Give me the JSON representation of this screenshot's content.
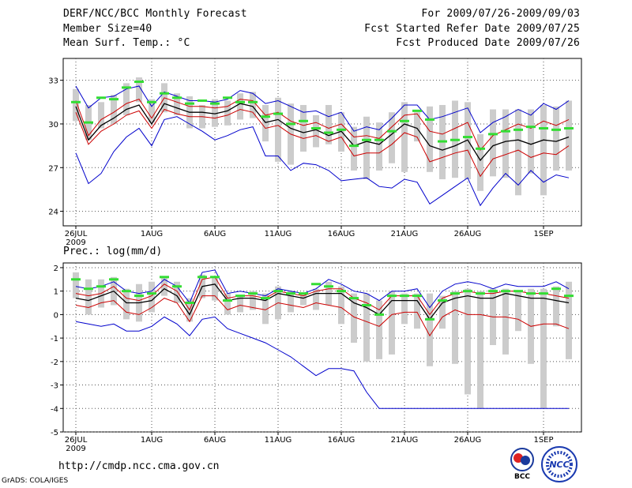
{
  "header": {
    "title": "DERF/NCC/BCC Monthly Forecast",
    "member_size": "Member Size=40",
    "variable": "Mean Surf. Temp.: °C",
    "period": "For 2009/07/26-2009/09/03",
    "fcst_started": "Fcst Started Refer Date 2009/07/25",
    "fcst_produced": "Fcst Produced Date 2009/07/26"
  },
  "footer": {
    "url": "http://cmdp.ncc.cma.gov.cn",
    "grads": "GrADS: COLA/IGES",
    "logo_left_text": "BCC",
    "logo_right_text": "NCC"
  },
  "colors": {
    "max_min_line": "#0000cc",
    "upper_lower_line": "#cc0000",
    "mean_line": "#000000",
    "obs_bar": "#cccccc",
    "marker": "#33dd33",
    "grid": "#555555"
  },
  "chart_data": [
    {
      "type": "line",
      "title": "Mean Surf. Temp.: °C",
      "x_start_day": 0,
      "n_days": 40,
      "xticks": [
        "26JUL",
        "1AUG",
        "6AUG",
        "11AUG",
        "16AUG",
        "21AUG",
        "26AUG",
        "1SEP"
      ],
      "xtick_days": [
        0,
        6,
        11,
        16,
        21,
        26,
        31,
        37
      ],
      "xtick_sub": [
        "2009",
        "",
        "",
        "",
        "",
        "",
        "",
        ""
      ],
      "yticks": [
        "24",
        "27",
        "30",
        "33"
      ],
      "ylim": [
        23,
        34.5
      ],
      "series": [
        {
          "name": "ensemble max",
          "color": "#0000cc",
          "values": [
            32.6,
            31.1,
            31.8,
            31.9,
            32.4,
            32.6,
            31.2,
            32.2,
            31.9,
            31.6,
            31.6,
            31.5,
            31.7,
            32.3,
            32.1,
            31.4,
            31.6,
            31.2,
            30.8,
            30.9,
            30.5,
            30.8,
            29.5,
            29.8,
            29.6,
            30.4,
            31.3,
            31.3,
            30.3,
            30.5,
            30.8,
            31.1,
            29.4,
            30.1,
            30.5,
            31.0,
            30.6,
            31.4,
            31.0,
            31.6
          ]
        },
        {
          "name": "ensemble upper",
          "color": "#cc0000",
          "values": [
            31.6,
            29.2,
            30.3,
            30.8,
            31.4,
            31.7,
            30.4,
            31.8,
            31.5,
            31.2,
            31.2,
            31.1,
            31.2,
            31.7,
            31.6,
            30.6,
            30.8,
            30.2,
            29.9,
            30.1,
            29.7,
            30.0,
            29.1,
            29.2,
            29.0,
            29.8,
            30.6,
            30.7,
            29.5,
            29.3,
            29.7,
            30.1,
            28.2,
            29.2,
            29.6,
            30.0,
            29.7,
            30.2,
            29.9,
            30.3
          ]
        },
        {
          "name": "ensemble mean",
          "color": "#000000",
          "values": [
            31.2,
            28.9,
            29.9,
            30.4,
            31.0,
            31.3,
            30.0,
            31.4,
            31.1,
            30.8,
            30.8,
            30.7,
            30.9,
            31.4,
            31.2,
            30.1,
            30.3,
            29.7,
            29.4,
            29.6,
            29.2,
            29.5,
            28.5,
            28.8,
            28.6,
            29.3,
            30.0,
            29.7,
            28.5,
            28.2,
            28.5,
            28.9,
            27.5,
            28.5,
            28.8,
            28.9,
            28.6,
            28.9,
            28.8,
            29.1
          ]
        },
        {
          "name": "ensemble lower",
          "color": "#cc0000",
          "values": [
            30.8,
            28.6,
            29.5,
            30.0,
            30.6,
            30.9,
            29.7,
            31.0,
            30.7,
            30.5,
            30.5,
            30.4,
            30.6,
            31.0,
            30.8,
            29.7,
            29.9,
            29.3,
            29.0,
            29.2,
            28.8,
            29.1,
            27.8,
            28.0,
            28.0,
            28.6,
            29.4,
            29.1,
            27.4,
            27.7,
            28.0,
            28.2,
            26.4,
            27.6,
            27.9,
            28.2,
            27.7,
            28.0,
            27.9,
            28.5
          ]
        },
        {
          "name": "ensemble min",
          "color": "#0000cc",
          "values": [
            28.0,
            25.9,
            26.6,
            28.1,
            29.1,
            29.7,
            28.5,
            30.3,
            30.5,
            30.0,
            29.5,
            28.9,
            29.2,
            29.6,
            29.8,
            27.8,
            27.8,
            26.8,
            27.3,
            27.2,
            26.8,
            26.1,
            26.2,
            26.3,
            25.7,
            25.6,
            26.2,
            26.0,
            24.5,
            25.1,
            25.7,
            26.3,
            24.4,
            25.6,
            26.6,
            25.8,
            26.8,
            26.0,
            26.5,
            26.3
          ]
        }
      ],
      "bars_top": [
        32.4,
        31.3,
        31.5,
        32.0,
        32.8,
        33.2,
        31.7,
        32.8,
        32.1,
        31.9,
        31.3,
        31.7,
        31.6,
        32.1,
        32.2,
        31.3,
        31.8,
        31.4,
        31.3,
        30.6,
        31.3,
        30.8,
        29.8,
        30.5,
        30.1,
        30.8,
        31.5,
        30.8,
        31.2,
        31.3,
        31.6,
        31.5,
        29.3,
        31.0,
        31.0,
        31.0,
        31.0,
        31.3,
        31.2,
        31.6
      ],
      "bars_bottom": [
        30.2,
        28.9,
        29.7,
        30.0,
        30.6,
        31.5,
        30.1,
        30.8,
        30.6,
        29.7,
        29.7,
        29.8,
        29.9,
        30.3,
        30.4,
        28.8,
        27.4,
        27.2,
        28.1,
        28.4,
        28.6,
        28.1,
        26.8,
        26.2,
        26.8,
        27.3,
        26.7,
        28.8,
        26.7,
        26.2,
        26.3,
        26.2,
        25.4,
        26.4,
        26.3,
        25.1,
        26.6,
        25.1,
        26.8,
        26.8
      ],
      "markers": [
        31.5,
        30.1,
        31.8,
        31.7,
        32.5,
        32.9,
        31.5,
        32.1,
        31.8,
        31.4,
        31.6,
        31.4,
        31.8,
        31.5,
        31.5,
        30.5,
        30.7,
        30.0,
        30.2,
        29.7,
        29.4,
        29.6,
        28.5,
        28.9,
        28.9,
        29.5,
        30.2,
        30.9,
        30.3,
        28.8,
        28.9,
        29.1,
        28.3,
        29.3,
        29.5,
        29.6,
        29.8,
        29.7,
        29.6,
        29.7
      ]
    },
    {
      "type": "line",
      "title": "Prec.: log(mm/d)",
      "x_start_day": 0,
      "n_days": 40,
      "xticks": [
        "26JUL",
        "1AUG",
        "6AUG",
        "11AUG",
        "16AUG",
        "21AUG",
        "26AUG",
        "1SEP"
      ],
      "xtick_days": [
        0,
        6,
        11,
        16,
        21,
        26,
        31,
        37
      ],
      "xtick_sub": [
        "2009",
        "",
        "",
        "",
        "",
        "",
        "",
        ""
      ],
      "yticks": [
        "-5",
        "-4",
        "-3",
        "-2",
        "-1",
        "0",
        "1",
        "2"
      ],
      "ylim": [
        -5,
        2.2
      ],
      "series": [
        {
          "name": "ensemble max",
          "color": "#0000cc",
          "values": [
            1.2,
            1.1,
            1.2,
            1.4,
            1.0,
            0.9,
            1.0,
            1.5,
            1.2,
            0.5,
            1.8,
            1.9,
            0.9,
            1.0,
            0.9,
            0.8,
            1.1,
            1.0,
            0.9,
            1.1,
            1.5,
            1.3,
            1.0,
            0.9,
            0.6,
            1.0,
            1.0,
            1.1,
            0.3,
            1.0,
            1.3,
            1.4,
            1.3,
            1.1,
            1.3,
            1.2,
            1.2,
            1.2,
            1.4,
            1.1
          ]
        },
        {
          "name": "ensemble upper",
          "color": "#cc0000",
          "values": [
            0.9,
            0.8,
            0.9,
            1.2,
            0.7,
            0.6,
            0.8,
            1.3,
            1.0,
            0.2,
            1.5,
            1.6,
            0.7,
            0.8,
            0.8,
            0.7,
            1.0,
            0.9,
            0.8,
            1.0,
            1.1,
            1.1,
            0.7,
            0.5,
            0.2,
            0.8,
            0.8,
            0.8,
            0.0,
            0.7,
            0.9,
            1.0,
            0.9,
            0.9,
            1.0,
            1.0,
            0.9,
            0.9,
            0.8,
            0.7
          ]
        },
        {
          "name": "ensemble mean",
          "color": "#000000",
          "values": [
            0.7,
            0.6,
            0.8,
            1.0,
            0.5,
            0.5,
            0.6,
            1.1,
            0.8,
            0.0,
            1.2,
            1.3,
            0.6,
            0.7,
            0.7,
            0.6,
            0.9,
            0.8,
            0.7,
            0.9,
            0.9,
            0.9,
            0.5,
            0.3,
            0.0,
            0.6,
            0.6,
            0.6,
            -0.2,
            0.5,
            0.7,
            0.8,
            0.7,
            0.7,
            0.9,
            0.8,
            0.7,
            0.7,
            0.6,
            0.5
          ]
        },
        {
          "name": "ensemble lower",
          "color": "#cc0000",
          "values": [
            0.4,
            0.3,
            0.5,
            0.6,
            0.1,
            0.0,
            0.3,
            0.7,
            0.5,
            -0.3,
            0.8,
            0.8,
            0.2,
            0.4,
            0.3,
            0.2,
            0.5,
            0.4,
            0.3,
            0.5,
            0.4,
            0.3,
            -0.1,
            -0.3,
            -0.5,
            0.0,
            0.1,
            0.1,
            -0.9,
            -0.1,
            0.2,
            0.0,
            0.0,
            -0.1,
            -0.1,
            -0.2,
            -0.5,
            -0.4,
            -0.4,
            -0.6
          ]
        },
        {
          "name": "ensemble min",
          "color": "#0000cc",
          "values": [
            -0.3,
            -0.4,
            -0.5,
            -0.4,
            -0.7,
            -0.7,
            -0.5,
            -0.1,
            -0.4,
            -0.9,
            -0.2,
            -0.1,
            -0.6,
            -0.8,
            -1.0,
            -1.2,
            -1.5,
            -1.8,
            -2.2,
            -2.6,
            -2.3,
            -2.3,
            -2.4,
            -3.3,
            -4.0,
            -4.0,
            -4.0,
            -4.0,
            -4.0,
            -4.0,
            -4.0,
            -4.0,
            -4.0,
            -4.0,
            -4.0,
            -4.0,
            -4.0,
            -4.0,
            -4.0,
            -4.0
          ]
        }
      ],
      "bars_top": [
        1.8,
        1.5,
        1.5,
        1.6,
        1.1,
        1.3,
        1.4,
        1.6,
        1.4,
        0.7,
        1.7,
        1.6,
        0.9,
        0.8,
        1.0,
        0.9,
        1.2,
        1.0,
        0.9,
        1.1,
        1.4,
        1.2,
        0.9,
        0.9,
        0.6,
        1.0,
        0.9,
        0.9,
        0.9,
        0.8,
        1.0,
        1.1,
        1.0,
        1.1,
        1.1,
        1.0,
        1.1,
        1.1,
        1.2,
        1.4
      ],
      "bars_bottom": [
        0.7,
        0.0,
        0.3,
        0.4,
        -0.2,
        -0.3,
        0.1,
        0.8,
        0.5,
        -0.3,
        0.7,
        0.6,
        0.0,
        0.1,
        0.2,
        -0.4,
        -0.2,
        0.1,
        0.4,
        0.2,
        0.4,
        -0.4,
        -1.2,
        -2.0,
        -1.9,
        -1.7,
        -0.4,
        -0.6,
        -2.2,
        -0.6,
        -2.1,
        -3.4,
        -4.0,
        -1.3,
        -1.7,
        -0.7,
        -2.1,
        -4.0,
        -0.5,
        -1.9
      ],
      "markers": [
        1.5,
        1.1,
        1.2,
        1.5,
        1.0,
        0.8,
        0.9,
        1.6,
        1.2,
        0.5,
        1.6,
        1.6,
        0.6,
        0.8,
        0.9,
        0.7,
        1.0,
        0.9,
        0.9,
        1.3,
        1.2,
        1.0,
        0.7,
        0.4,
        0.0,
        0.8,
        0.8,
        0.8,
        -0.2,
        0.6,
        0.9,
        1.0,
        0.9,
        1.0,
        1.0,
        1.0,
        0.9,
        0.9,
        1.1,
        0.8
      ]
    }
  ]
}
